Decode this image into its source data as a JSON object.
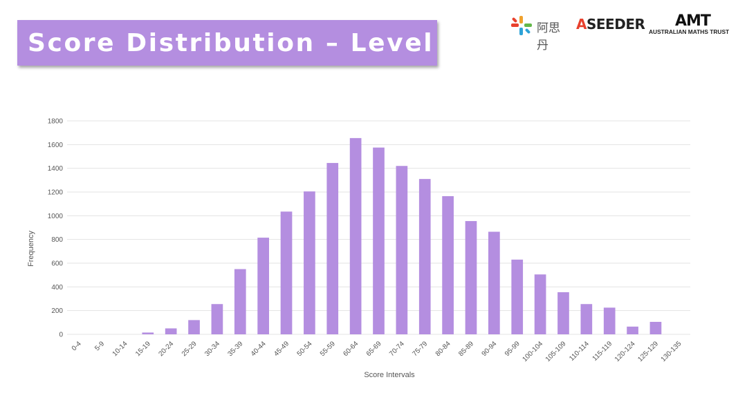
{
  "header": {
    "title": "Score Distribution – Level D",
    "logos": {
      "sidan_text": "阿思丹",
      "aseeder_text": "SEEDER",
      "amt_mark": "AMT",
      "amt_text": "AUSTRALIAN MATHS TRUST"
    }
  },
  "colors": {
    "bar": "#b48ee0",
    "banner": "#b48ee0",
    "grid": "#e3e3e3"
  },
  "chart_data": {
    "type": "bar",
    "title": "",
    "xlabel": "Score Intervals",
    "ylabel": "Frequency",
    "ylim": [
      0,
      1800
    ],
    "yticks": [
      0,
      200,
      400,
      600,
      800,
      1000,
      1200,
      1400,
      1600,
      1800
    ],
    "grid": true,
    "categories": [
      "0-4",
      "5-9",
      "10-14",
      "15-19",
      "20-24",
      "25-29",
      "30-34",
      "35-39",
      "40-44",
      "45-49",
      "50-54",
      "55-59",
      "60-64",
      "65-69",
      "70-74",
      "75-79",
      "80-84",
      "85-89",
      "90-94",
      "95-99",
      "100-104",
      "105-109",
      "110-114",
      "115-119",
      "120-124",
      "125-129",
      "130-135"
    ],
    "values": [
      0,
      0,
      0,
      15,
      50,
      120,
      255,
      550,
      815,
      1035,
      1205,
      1445,
      1655,
      1575,
      1420,
      1310,
      1165,
      955,
      865,
      630,
      505,
      355,
      255,
      225,
      65,
      105,
      0
    ]
  }
}
